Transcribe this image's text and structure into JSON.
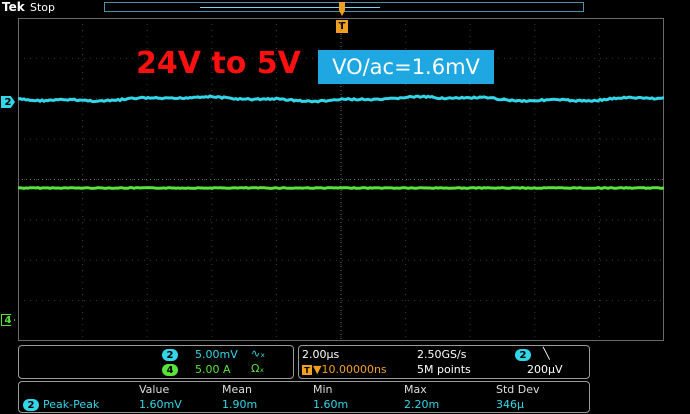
{
  "header": {
    "brand": "Tek",
    "status": "Stop"
  },
  "annotations": {
    "title": "24V to 5V",
    "measurement": "VO/ac=1.6mV"
  },
  "markers": {
    "ch2": "2",
    "ch4": "4",
    "trigger": "T"
  },
  "channels": [
    {
      "id": "2",
      "scale": "5.00mV",
      "coupling": "∿ₓ",
      "color": "#33d6e8"
    },
    {
      "id": "4",
      "scale": "5.00 A",
      "coupling": "Ωₓ",
      "color": "#58e23a"
    }
  ],
  "timebase": {
    "time_per_div": "2.00μs",
    "sample_rate": "2.50GS/s",
    "trigger_pos": "▼10.00000ns",
    "record_length": "5M points",
    "trigger_source": "2",
    "trigger_slope": "╲",
    "trigger_level": "200μV"
  },
  "measurements": {
    "headers": [
      "Value",
      "Mean",
      "Min",
      "Max",
      "Std Dev"
    ],
    "rows": [
      {
        "source": "2",
        "name": "Peak-Peak",
        "value": "1.60mV",
        "mean": "1.90m",
        "min": "1.60m",
        "max": "2.20m",
        "std_dev": "346μ"
      }
    ]
  },
  "colors": {
    "ch2": "#33d6e8",
    "ch4": "#58e23a",
    "trigger": "#f0a020",
    "annotation_red": "#ff1010",
    "annotation_box": "#1ea7e0"
  }
}
